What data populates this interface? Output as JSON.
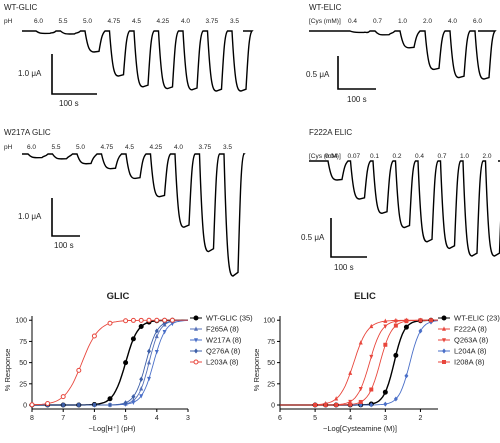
{
  "traces": {
    "tl": {
      "title": "WT-GLIC",
      "row_label": "pH",
      "concentrations": [
        "6.0",
        "5.5",
        "5.0",
        "4.75",
        "4.5",
        "4.25",
        "4.0",
        "3.75",
        "3.5"
      ],
      "scale_y": "1.0 μA",
      "scale_x": "100 s",
      "relative_peaks": [
        0.04,
        0.05,
        0.35,
        0.75,
        0.93,
        0.96,
        0.98,
        1.0,
        1.0
      ]
    },
    "tr": {
      "title": "WT-ELIC",
      "row_label": "[Cys (mM)]",
      "concentrations": [
        "0.4",
        "0.7",
        "1.0",
        "2.0",
        "4.0",
        "6.0"
      ],
      "scale_y": "0.5 μA",
      "scale_x": "100 s",
      "relative_peaks": [
        0.03,
        0.08,
        0.35,
        0.8,
        0.97,
        1.0
      ]
    },
    "ml": {
      "title": "W217A GLIC",
      "row_label": "pH",
      "concentrations": [
        "6.0",
        "5.5",
        "5.0",
        "4.75",
        "4.5",
        "4.25",
        "4.0",
        "3.75",
        "3.5"
      ],
      "scale_y": "1.0 μA",
      "scale_x": "100 s",
      "relative_peaks": [
        0.03,
        0.04,
        0.08,
        0.12,
        0.2,
        0.35,
        0.6,
        0.8,
        1.0
      ]
    },
    "mr": {
      "title": "F222A ELIC",
      "row_label": "[Cys (mM)]",
      "concentrations": [
        "0.04",
        "0.07",
        "0.1",
        "0.2",
        "0.4",
        "0.7",
        "1.0",
        "2.0"
      ],
      "scale_y": "0.5 μA",
      "scale_x": "100 s",
      "relative_peaks": [
        0.2,
        0.4,
        0.55,
        0.7,
        0.85,
        0.92,
        1.0,
        1.0
      ]
    }
  },
  "chart_data": [
    {
      "type": "line",
      "title": "GLIC",
      "xlabel": "−Log[H⁺] (pH)",
      "ylabel": "% Response",
      "xlim": [
        8,
        3
      ],
      "ylim": [
        0,
        105
      ],
      "xticks": [
        8,
        7,
        6,
        5,
        4,
        3
      ],
      "yticks": [
        0,
        25,
        50,
        75,
        100
      ],
      "legend_position": "right",
      "series": [
        {
          "name": "WT-GLIC",
          "n": "(35)",
          "color": "#000000",
          "marker": "circle",
          "ec50": 5.0,
          "hill": 2.2
        },
        {
          "name": "F265A",
          "n": "(8)",
          "color": "#5570b8",
          "marker": "triangle-up",
          "ec50": 4.25,
          "hill": 2.5
        },
        {
          "name": "W217A",
          "n": "(8)",
          "color": "#4a6fc8",
          "marker": "triangle-down",
          "ec50": 4.1,
          "hill": 2.3
        },
        {
          "name": "Q276A",
          "n": "(8)",
          "color": "#3d5fa8",
          "marker": "diamond",
          "ec50": 4.35,
          "hill": 2.4
        },
        {
          "name": "L203A",
          "n": "(8)",
          "color": "#e8463c",
          "marker": "circle-open",
          "ec50": 6.4,
          "hill": 1.6
        }
      ],
      "x_points": [
        8,
        7.5,
        7,
        6.5,
        6,
        5.5,
        5,
        4.75,
        4.5,
        4.25,
        4,
        3.75,
        3.5
      ]
    },
    {
      "type": "line",
      "title": "ELIC",
      "xlabel": "−Log[Cysteamine (M)]",
      "ylabel": "% Response",
      "xlim": [
        6,
        1.5
      ],
      "ylim": [
        0,
        105
      ],
      "xticks": [
        6,
        5,
        4,
        3,
        2
      ],
      "yticks": [
        0,
        25,
        50,
        75,
        100
      ],
      "legend_position": "right",
      "series": [
        {
          "name": "WT-ELIC",
          "n": "(23)",
          "color": "#000000",
          "marker": "circle",
          "ec50": 2.75,
          "hill": 3.0
        },
        {
          "name": "F222A",
          "n": "(8)",
          "color": "#e8463c",
          "marker": "triangle-up",
          "ec50": 3.9,
          "hill": 2.2
        },
        {
          "name": "Q263A",
          "n": "(8)",
          "color": "#e8463c",
          "marker": "triangle-down",
          "ec50": 3.45,
          "hill": 2.5
        },
        {
          "name": "L204A",
          "n": "(8)",
          "color": "#4a6fc8",
          "marker": "diamond",
          "ec50": 2.3,
          "hill": 2.8
        },
        {
          "name": "I208A",
          "n": "(8)",
          "color": "#e8463c",
          "marker": "square",
          "ec50": 3.15,
          "hill": 2.6
        }
      ],
      "x_points": [
        5,
        4.7,
        4.4,
        4,
        3.7,
        3.4,
        3,
        2.7,
        2.4,
        2,
        1.7
      ]
    }
  ]
}
